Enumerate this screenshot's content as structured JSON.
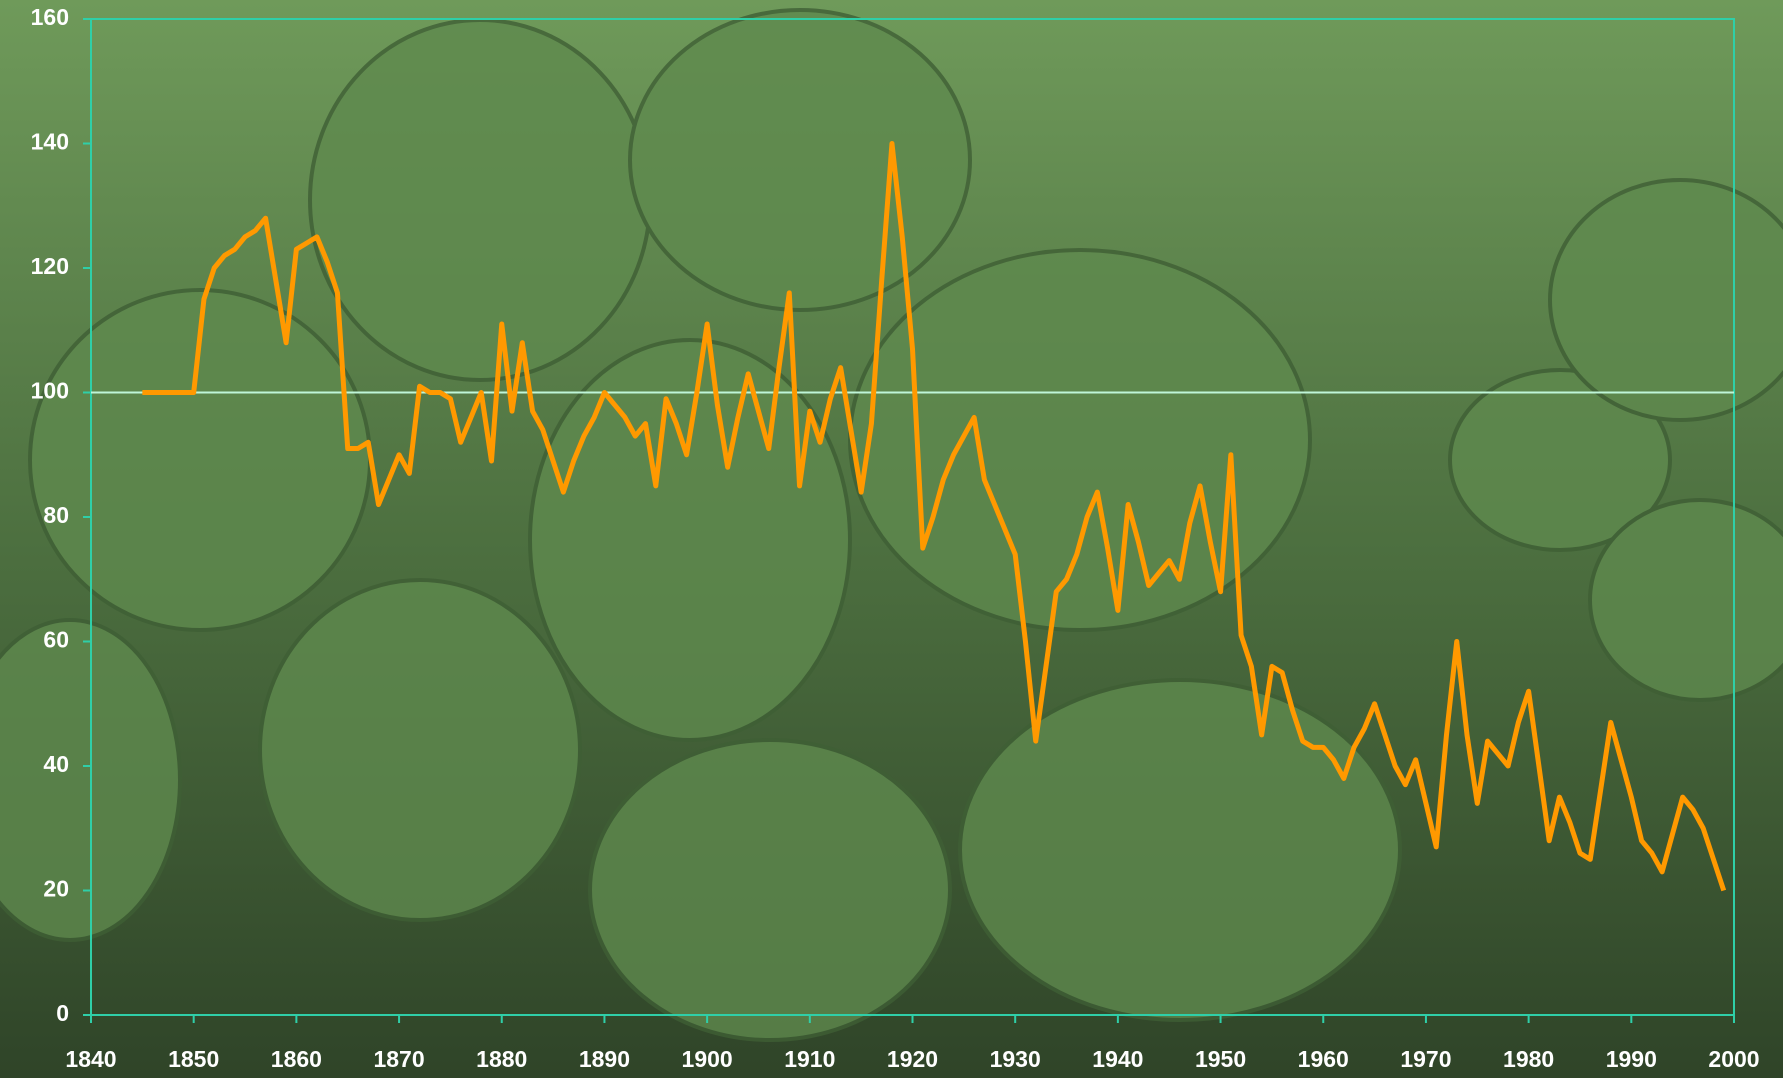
{
  "chart_data": {
    "type": "line",
    "x": [
      1845,
      1846,
      1847,
      1848,
      1849,
      1850,
      1851,
      1852,
      1853,
      1854,
      1855,
      1856,
      1857,
      1858,
      1859,
      1860,
      1861,
      1862,
      1863,
      1864,
      1865,
      1866,
      1867,
      1868,
      1869,
      1870,
      1871,
      1872,
      1873,
      1874,
      1875,
      1876,
      1877,
      1878,
      1879,
      1880,
      1881,
      1882,
      1883,
      1884,
      1885,
      1886,
      1887,
      1888,
      1889,
      1890,
      1891,
      1892,
      1893,
      1894,
      1895,
      1896,
      1897,
      1898,
      1899,
      1900,
      1901,
      1902,
      1903,
      1904,
      1905,
      1906,
      1907,
      1908,
      1909,
      1910,
      1911,
      1912,
      1913,
      1914,
      1915,
      1916,
      1917,
      1918,
      1919,
      1920,
      1921,
      1922,
      1923,
      1924,
      1925,
      1926,
      1927,
      1928,
      1929,
      1930,
      1931,
      1932,
      1933,
      1934,
      1935,
      1936,
      1937,
      1938,
      1939,
      1940,
      1941,
      1942,
      1943,
      1944,
      1945,
      1946,
      1947,
      1948,
      1949,
      1950,
      1951,
      1952,
      1953,
      1954,
      1955,
      1956,
      1957,
      1958,
      1959,
      1960,
      1961,
      1962,
      1963,
      1964,
      1965,
      1966,
      1967,
      1968,
      1969,
      1970,
      1971,
      1972,
      1973,
      1974,
      1975,
      1976,
      1977,
      1978,
      1979,
      1980,
      1981,
      1982,
      1983,
      1984,
      1985,
      1986,
      1987,
      1988,
      1989,
      1990,
      1991,
      1992,
      1993,
      1994,
      1995,
      1996,
      1997,
      1998,
      1999
    ],
    "values": [
      100,
      100,
      100,
      100,
      100,
      100,
      115,
      120,
      122,
      123,
      125,
      126,
      128,
      118,
      108,
      123,
      124,
      125,
      121,
      116,
      91,
      91,
      92,
      82,
      86,
      90,
      87,
      101,
      100,
      100,
      99,
      92,
      96,
      100,
      89,
      111,
      97,
      108,
      97,
      94,
      89,
      84,
      89,
      93,
      96,
      100,
      98,
      96,
      93,
      95,
      85,
      99,
      95,
      90,
      100,
      111,
      98,
      88,
      96,
      103,
      97,
      91,
      104,
      116,
      85,
      97,
      92,
      99,
      104,
      94,
      84,
      95,
      118,
      140,
      125,
      107,
      75,
      80,
      86,
      90,
      93,
      96,
      86,
      82,
      78,
      74,
      60,
      44,
      56,
      68,
      70,
      74,
      80,
      84,
      75,
      65,
      82,
      76,
      69,
      71,
      73,
      70,
      79,
      85,
      76,
      68,
      90,
      61,
      56,
      45,
      56,
      55,
      49,
      44,
      43,
      43,
      41,
      38,
      43,
      46,
      50,
      45,
      40,
      37,
      41,
      34,
      27,
      45,
      60,
      45,
      34,
      44,
      42,
      40,
      47,
      52,
      40,
      28,
      35,
      31,
      26,
      25,
      36,
      47,
      41,
      35,
      28,
      26,
      23,
      29,
      35,
      33,
      30,
      25,
      20
    ],
    "color": "#ff9900",
    "reference_line": 100,
    "xlim": [
      1840,
      2000
    ],
    "xticks": [
      1840,
      1850,
      1860,
      1870,
      1880,
      1890,
      1900,
      1910,
      1920,
      1930,
      1940,
      1950,
      1960,
      1970,
      1980,
      1990,
      2000
    ],
    "ylim": [
      0,
      160
    ],
    "yticks": [
      0,
      20,
      40,
      60,
      80,
      100,
      120,
      140,
      160
    ]
  }
}
